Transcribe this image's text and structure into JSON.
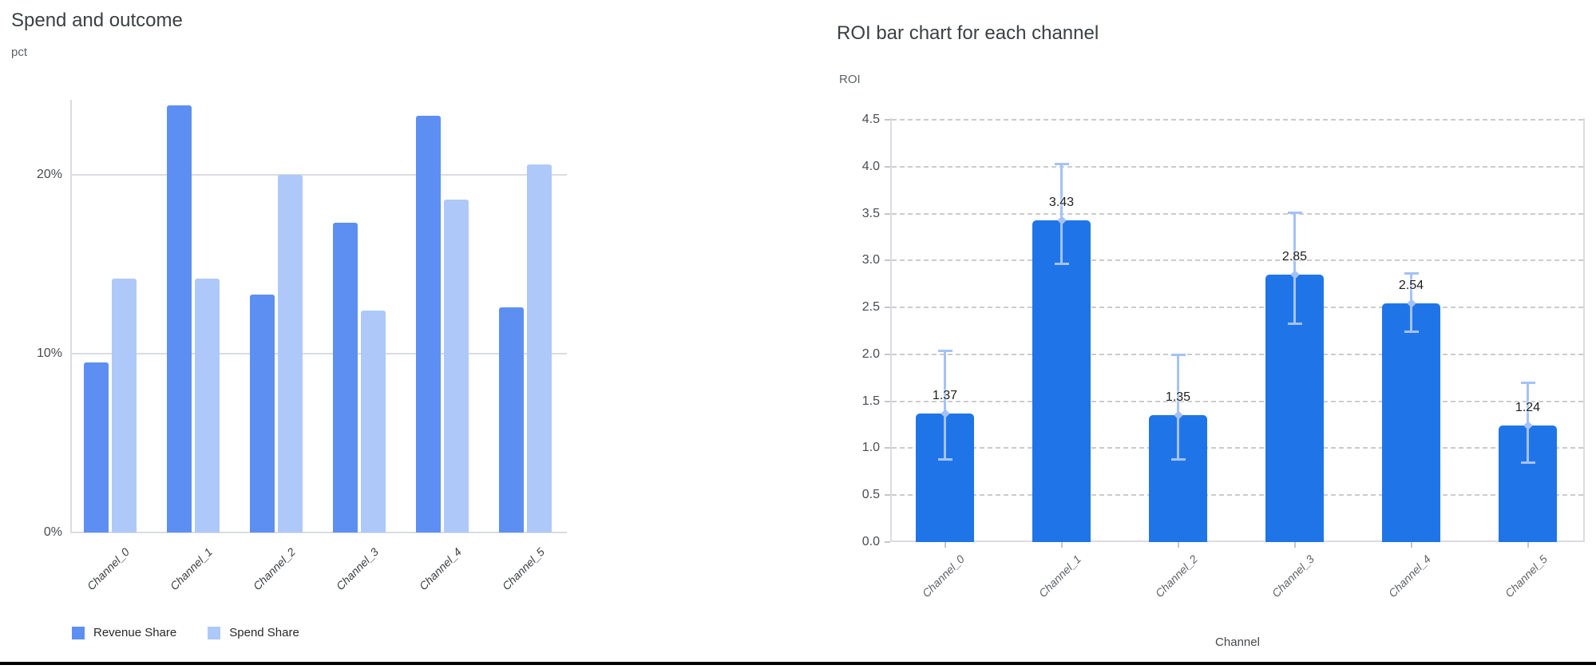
{
  "window": {
    "bottom_border_color": "#000000"
  },
  "styles": {
    "solid_grid_color": "#dadce0",
    "dashed_grid_color": "#cccccc",
    "title_color": "#3c4043",
    "axis_text_color": "#5f6368"
  },
  "chart_data": [
    {
      "type": "bar",
      "title": "Spend and outcome",
      "ylabel": "pct",
      "xlabel": "",
      "categories": [
        "Channel_0",
        "Channel_1",
        "Channel_2",
        "Channel_3",
        "Channel_4",
        "Channel_5"
      ],
      "series": [
        {
          "name": "Revenue Share",
          "color": "#5d8ff2",
          "values": [
            9.5,
            23.9,
            13.3,
            17.3,
            23.3,
            12.6
          ]
        },
        {
          "name": "Spend Share",
          "color": "#aec9f9",
          "values": [
            14.2,
            14.2,
            20.0,
            12.4,
            18.6,
            20.6
          ]
        }
      ],
      "value_format": "percent",
      "y_ticks": [
        0,
        10,
        20
      ],
      "y_tick_labels": [
        "0%",
        "10%",
        "20%"
      ],
      "ylim": [
        0,
        25.5
      ],
      "grid": "horizontal-solid",
      "legend_position": "bottom-left"
    },
    {
      "type": "bar",
      "title": "ROI bar chart for each channel",
      "ylabel": "ROI",
      "xlabel": "Channel",
      "categories": [
        "Channel_0",
        "Channel_1",
        "Channel_2",
        "Channel_3",
        "Channel_4",
        "Channel_5"
      ],
      "series": [
        {
          "name": "ROI",
          "color": "#1f75e8",
          "values": [
            1.37,
            3.43,
            1.35,
            2.85,
            2.54,
            1.24
          ]
        }
      ],
      "data_labels": [
        "1.37",
        "3.43",
        "1.35",
        "2.85",
        "2.54",
        "1.24"
      ],
      "error_bars": {
        "color": "#a5c2f7",
        "low": [
          0.88,
          2.96,
          0.88,
          2.32,
          2.24,
          0.84
        ],
        "high": [
          2.04,
          4.03,
          2.0,
          3.51,
          2.87,
          1.7
        ]
      },
      "y_ticks": [
        0,
        0.5,
        1,
        1.5,
        2,
        2.5,
        3,
        3.5,
        4,
        4.5
      ],
      "y_tick_labels": [
        "0.0",
        "0.5",
        "1.0",
        "1.5",
        "2.0",
        "2.5",
        "3.0",
        "3.5",
        "4.0",
        "4.5"
      ],
      "ylim": [
        0,
        4.52
      ],
      "grid": "horizontal-dashed",
      "legend_position": "none"
    }
  ]
}
